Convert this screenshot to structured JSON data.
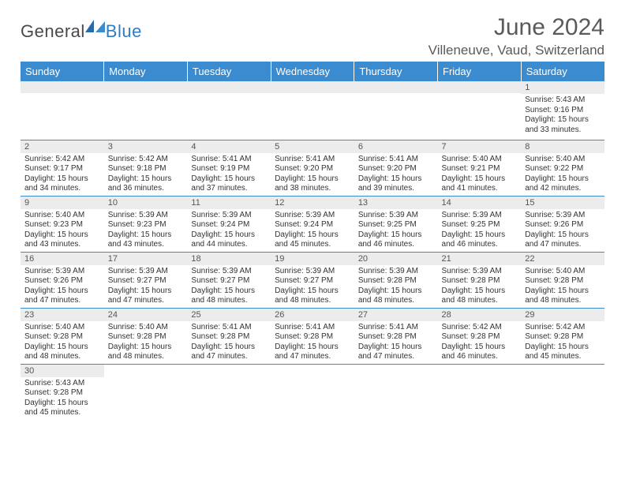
{
  "logo": {
    "general": "General",
    "blue": "Blue"
  },
  "title": "June 2024",
  "location": "Villeneuve, Vaud, Switzerland",
  "colors": {
    "header_bg": "#3a8bd0",
    "header_text": "#ffffff",
    "daynum_bg": "#ececec",
    "border": "#3a8bd0",
    "title_text": "#5a5a5a",
    "logo_blue": "#2e7cc2",
    "logo_gray": "#4a4a4a"
  },
  "day_headers": [
    "Sunday",
    "Monday",
    "Tuesday",
    "Wednesday",
    "Thursday",
    "Friday",
    "Saturday"
  ],
  "weeks": [
    [
      null,
      null,
      null,
      null,
      null,
      null,
      {
        "num": "1",
        "sunrise": "Sunrise: 5:43 AM",
        "sunset": "Sunset: 9:16 PM",
        "daylight1": "Daylight: 15 hours",
        "daylight2": "and 33 minutes."
      }
    ],
    [
      {
        "num": "2",
        "sunrise": "Sunrise: 5:42 AM",
        "sunset": "Sunset: 9:17 PM",
        "daylight1": "Daylight: 15 hours",
        "daylight2": "and 34 minutes."
      },
      {
        "num": "3",
        "sunrise": "Sunrise: 5:42 AM",
        "sunset": "Sunset: 9:18 PM",
        "daylight1": "Daylight: 15 hours",
        "daylight2": "and 36 minutes."
      },
      {
        "num": "4",
        "sunrise": "Sunrise: 5:41 AM",
        "sunset": "Sunset: 9:19 PM",
        "daylight1": "Daylight: 15 hours",
        "daylight2": "and 37 minutes."
      },
      {
        "num": "5",
        "sunrise": "Sunrise: 5:41 AM",
        "sunset": "Sunset: 9:20 PM",
        "daylight1": "Daylight: 15 hours",
        "daylight2": "and 38 minutes."
      },
      {
        "num": "6",
        "sunrise": "Sunrise: 5:41 AM",
        "sunset": "Sunset: 9:20 PM",
        "daylight1": "Daylight: 15 hours",
        "daylight2": "and 39 minutes."
      },
      {
        "num": "7",
        "sunrise": "Sunrise: 5:40 AM",
        "sunset": "Sunset: 9:21 PM",
        "daylight1": "Daylight: 15 hours",
        "daylight2": "and 41 minutes."
      },
      {
        "num": "8",
        "sunrise": "Sunrise: 5:40 AM",
        "sunset": "Sunset: 9:22 PM",
        "daylight1": "Daylight: 15 hours",
        "daylight2": "and 42 minutes."
      }
    ],
    [
      {
        "num": "9",
        "sunrise": "Sunrise: 5:40 AM",
        "sunset": "Sunset: 9:23 PM",
        "daylight1": "Daylight: 15 hours",
        "daylight2": "and 43 minutes."
      },
      {
        "num": "10",
        "sunrise": "Sunrise: 5:39 AM",
        "sunset": "Sunset: 9:23 PM",
        "daylight1": "Daylight: 15 hours",
        "daylight2": "and 43 minutes."
      },
      {
        "num": "11",
        "sunrise": "Sunrise: 5:39 AM",
        "sunset": "Sunset: 9:24 PM",
        "daylight1": "Daylight: 15 hours",
        "daylight2": "and 44 minutes."
      },
      {
        "num": "12",
        "sunrise": "Sunrise: 5:39 AM",
        "sunset": "Sunset: 9:24 PM",
        "daylight1": "Daylight: 15 hours",
        "daylight2": "and 45 minutes."
      },
      {
        "num": "13",
        "sunrise": "Sunrise: 5:39 AM",
        "sunset": "Sunset: 9:25 PM",
        "daylight1": "Daylight: 15 hours",
        "daylight2": "and 46 minutes."
      },
      {
        "num": "14",
        "sunrise": "Sunrise: 5:39 AM",
        "sunset": "Sunset: 9:25 PM",
        "daylight1": "Daylight: 15 hours",
        "daylight2": "and 46 minutes."
      },
      {
        "num": "15",
        "sunrise": "Sunrise: 5:39 AM",
        "sunset": "Sunset: 9:26 PM",
        "daylight1": "Daylight: 15 hours",
        "daylight2": "and 47 minutes."
      }
    ],
    [
      {
        "num": "16",
        "sunrise": "Sunrise: 5:39 AM",
        "sunset": "Sunset: 9:26 PM",
        "daylight1": "Daylight: 15 hours",
        "daylight2": "and 47 minutes."
      },
      {
        "num": "17",
        "sunrise": "Sunrise: 5:39 AM",
        "sunset": "Sunset: 9:27 PM",
        "daylight1": "Daylight: 15 hours",
        "daylight2": "and 47 minutes."
      },
      {
        "num": "18",
        "sunrise": "Sunrise: 5:39 AM",
        "sunset": "Sunset: 9:27 PM",
        "daylight1": "Daylight: 15 hours",
        "daylight2": "and 48 minutes."
      },
      {
        "num": "19",
        "sunrise": "Sunrise: 5:39 AM",
        "sunset": "Sunset: 9:27 PM",
        "daylight1": "Daylight: 15 hours",
        "daylight2": "and 48 minutes."
      },
      {
        "num": "20",
        "sunrise": "Sunrise: 5:39 AM",
        "sunset": "Sunset: 9:28 PM",
        "daylight1": "Daylight: 15 hours",
        "daylight2": "and 48 minutes."
      },
      {
        "num": "21",
        "sunrise": "Sunrise: 5:39 AM",
        "sunset": "Sunset: 9:28 PM",
        "daylight1": "Daylight: 15 hours",
        "daylight2": "and 48 minutes."
      },
      {
        "num": "22",
        "sunrise": "Sunrise: 5:40 AM",
        "sunset": "Sunset: 9:28 PM",
        "daylight1": "Daylight: 15 hours",
        "daylight2": "and 48 minutes."
      }
    ],
    [
      {
        "num": "23",
        "sunrise": "Sunrise: 5:40 AM",
        "sunset": "Sunset: 9:28 PM",
        "daylight1": "Daylight: 15 hours",
        "daylight2": "and 48 minutes."
      },
      {
        "num": "24",
        "sunrise": "Sunrise: 5:40 AM",
        "sunset": "Sunset: 9:28 PM",
        "daylight1": "Daylight: 15 hours",
        "daylight2": "and 48 minutes."
      },
      {
        "num": "25",
        "sunrise": "Sunrise: 5:41 AM",
        "sunset": "Sunset: 9:28 PM",
        "daylight1": "Daylight: 15 hours",
        "daylight2": "and 47 minutes."
      },
      {
        "num": "26",
        "sunrise": "Sunrise: 5:41 AM",
        "sunset": "Sunset: 9:28 PM",
        "daylight1": "Daylight: 15 hours",
        "daylight2": "and 47 minutes."
      },
      {
        "num": "27",
        "sunrise": "Sunrise: 5:41 AM",
        "sunset": "Sunset: 9:28 PM",
        "daylight1": "Daylight: 15 hours",
        "daylight2": "and 47 minutes."
      },
      {
        "num": "28",
        "sunrise": "Sunrise: 5:42 AM",
        "sunset": "Sunset: 9:28 PM",
        "daylight1": "Daylight: 15 hours",
        "daylight2": "and 46 minutes."
      },
      {
        "num": "29",
        "sunrise": "Sunrise: 5:42 AM",
        "sunset": "Sunset: 9:28 PM",
        "daylight1": "Daylight: 15 hours",
        "daylight2": "and 45 minutes."
      }
    ],
    [
      {
        "num": "30",
        "sunrise": "Sunrise: 5:43 AM",
        "sunset": "Sunset: 9:28 PM",
        "daylight1": "Daylight: 15 hours",
        "daylight2": "and 45 minutes."
      },
      null,
      null,
      null,
      null,
      null,
      null
    ]
  ]
}
